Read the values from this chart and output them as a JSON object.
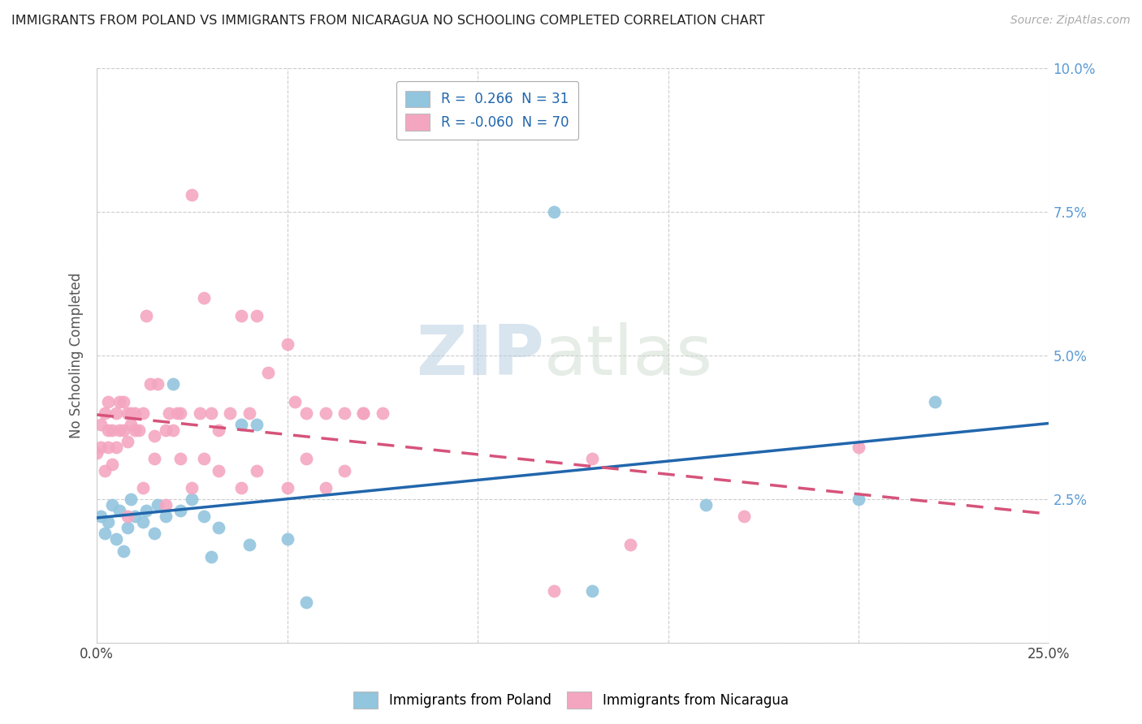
{
  "title": "IMMIGRANTS FROM POLAND VS IMMIGRANTS FROM NICARAGUA NO SCHOOLING COMPLETED CORRELATION CHART",
  "source": "Source: ZipAtlas.com",
  "ylabel": "No Schooling Completed",
  "xlim": [
    0.0,
    0.25
  ],
  "ylim": [
    0.0,
    0.1
  ],
  "xticks": [
    0.0,
    0.05,
    0.1,
    0.15,
    0.2,
    0.25
  ],
  "xtick_labels": [
    "0.0%",
    "",
    "",
    "",
    "",
    "25.0%"
  ],
  "yticks": [
    0.0,
    0.025,
    0.05,
    0.075,
    0.1
  ],
  "ytick_labels_right": [
    "",
    "2.5%",
    "5.0%",
    "7.5%",
    "10.0%"
  ],
  "color_blue": "#92c5de",
  "color_pink": "#f4a6c0",
  "line_color_blue": "#2166ac",
  "line_color_pink": "#d6537a",
  "blue_x": [
    0.001,
    0.002,
    0.003,
    0.004,
    0.005,
    0.006,
    0.007,
    0.008,
    0.009,
    0.01,
    0.012,
    0.013,
    0.015,
    0.016,
    0.018,
    0.02,
    0.022,
    0.025,
    0.028,
    0.03,
    0.032,
    0.038,
    0.04,
    0.042,
    0.05,
    0.055,
    0.12,
    0.13,
    0.16,
    0.2,
    0.22
  ],
  "blue_y": [
    0.022,
    0.019,
    0.021,
    0.024,
    0.018,
    0.023,
    0.016,
    0.02,
    0.025,
    0.022,
    0.021,
    0.023,
    0.019,
    0.024,
    0.022,
    0.045,
    0.023,
    0.025,
    0.022,
    0.015,
    0.02,
    0.038,
    0.017,
    0.038,
    0.018,
    0.007,
    0.075,
    0.009,
    0.024,
    0.025,
    0.042
  ],
  "pink_x": [
    0.0,
    0.001,
    0.001,
    0.002,
    0.002,
    0.003,
    0.003,
    0.003,
    0.004,
    0.004,
    0.005,
    0.005,
    0.006,
    0.006,
    0.007,
    0.007,
    0.008,
    0.008,
    0.009,
    0.009,
    0.01,
    0.01,
    0.011,
    0.012,
    0.013,
    0.014,
    0.015,
    0.016,
    0.018,
    0.019,
    0.02,
    0.021,
    0.022,
    0.025,
    0.027,
    0.028,
    0.03,
    0.032,
    0.035,
    0.038,
    0.04,
    0.042,
    0.045,
    0.05,
    0.052,
    0.055,
    0.06,
    0.065,
    0.07,
    0.075,
    0.008,
    0.012,
    0.015,
    0.018,
    0.022,
    0.025,
    0.028,
    0.032,
    0.038,
    0.042,
    0.05,
    0.055,
    0.06,
    0.065,
    0.07,
    0.12,
    0.13,
    0.14,
    0.17,
    0.2
  ],
  "pink_y": [
    0.033,
    0.038,
    0.034,
    0.04,
    0.03,
    0.042,
    0.034,
    0.037,
    0.037,
    0.031,
    0.04,
    0.034,
    0.042,
    0.037,
    0.037,
    0.042,
    0.035,
    0.04,
    0.038,
    0.04,
    0.04,
    0.037,
    0.037,
    0.04,
    0.057,
    0.045,
    0.036,
    0.045,
    0.037,
    0.04,
    0.037,
    0.04,
    0.04,
    0.078,
    0.04,
    0.06,
    0.04,
    0.037,
    0.04,
    0.057,
    0.04,
    0.057,
    0.047,
    0.052,
    0.042,
    0.04,
    0.04,
    0.04,
    0.04,
    0.04,
    0.022,
    0.027,
    0.032,
    0.024,
    0.032,
    0.027,
    0.032,
    0.03,
    0.027,
    0.03,
    0.027,
    0.032,
    0.027,
    0.03,
    0.04,
    0.009,
    0.032,
    0.017,
    0.022,
    0.034
  ]
}
